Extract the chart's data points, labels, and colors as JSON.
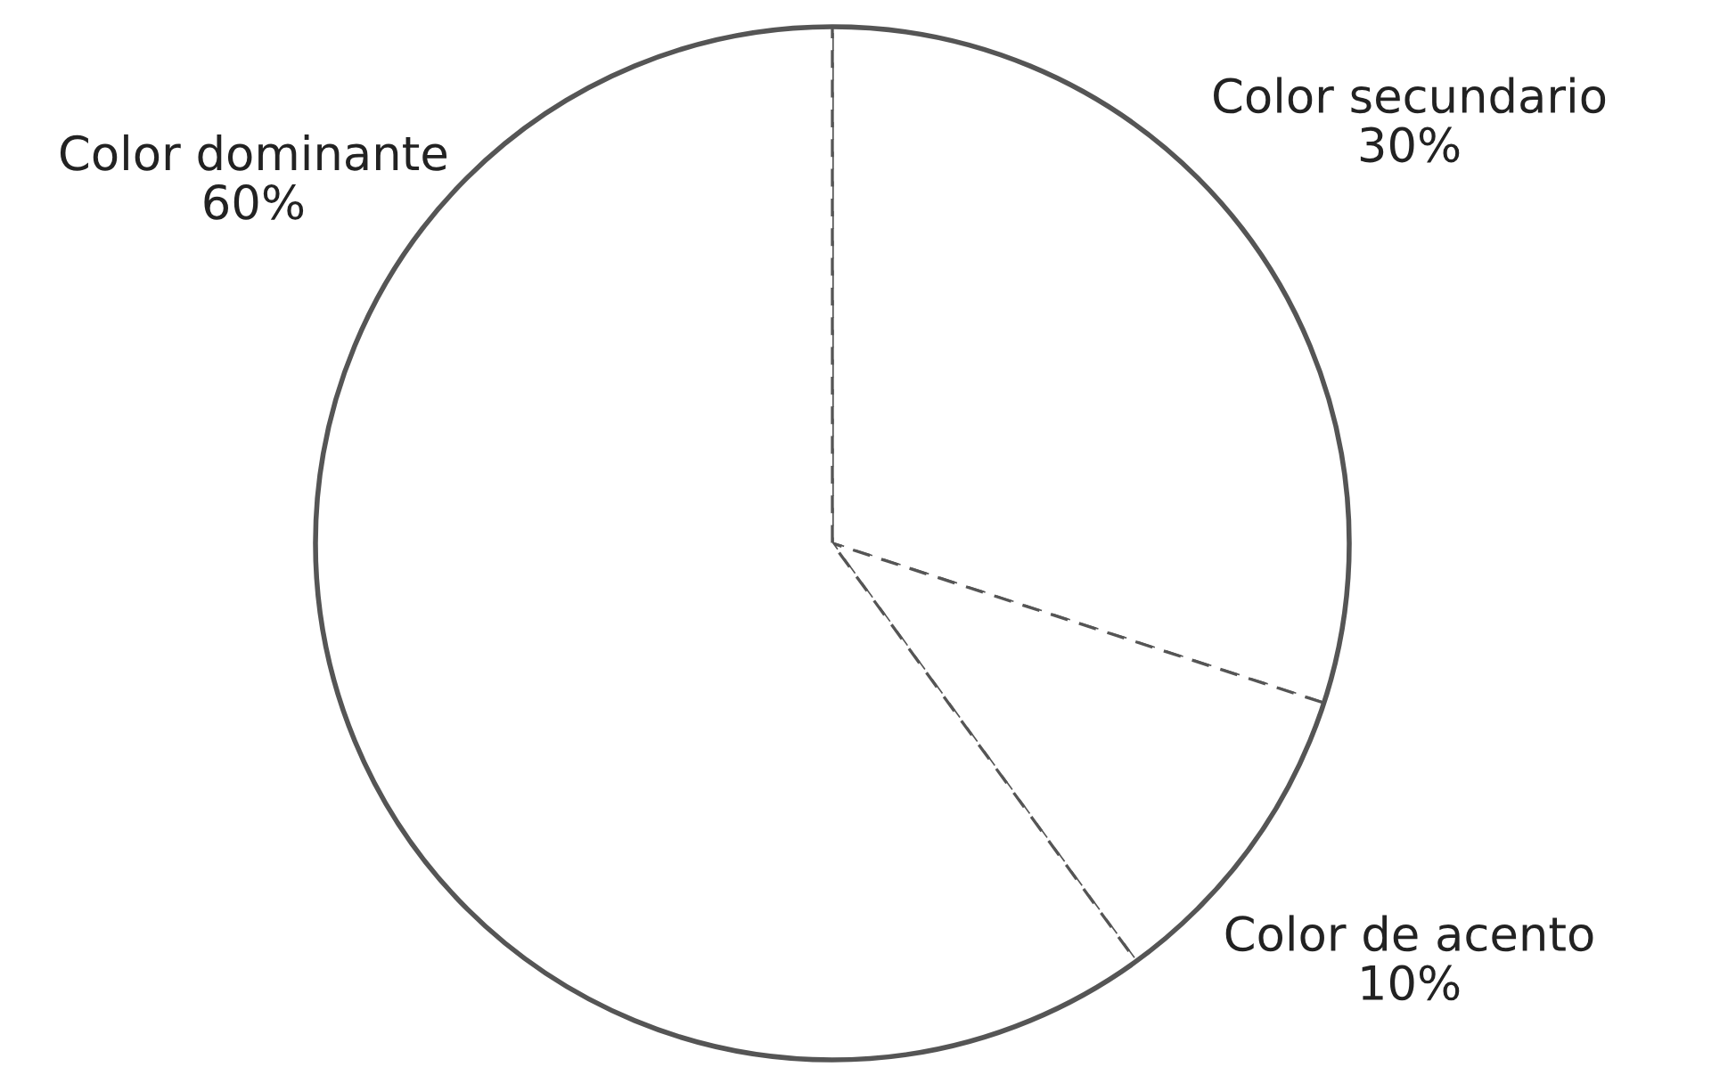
{
  "chart_data": {
    "type": "pie",
    "categories": [
      "Color secundario",
      "Color de acento",
      "Color dominante"
    ],
    "values": [
      30,
      10,
      60
    ],
    "value_labels": [
      "30%",
      "10%",
      "60%"
    ],
    "colors": [
      "#ffffff",
      "#ffffff",
      "#ffffff"
    ]
  }
}
